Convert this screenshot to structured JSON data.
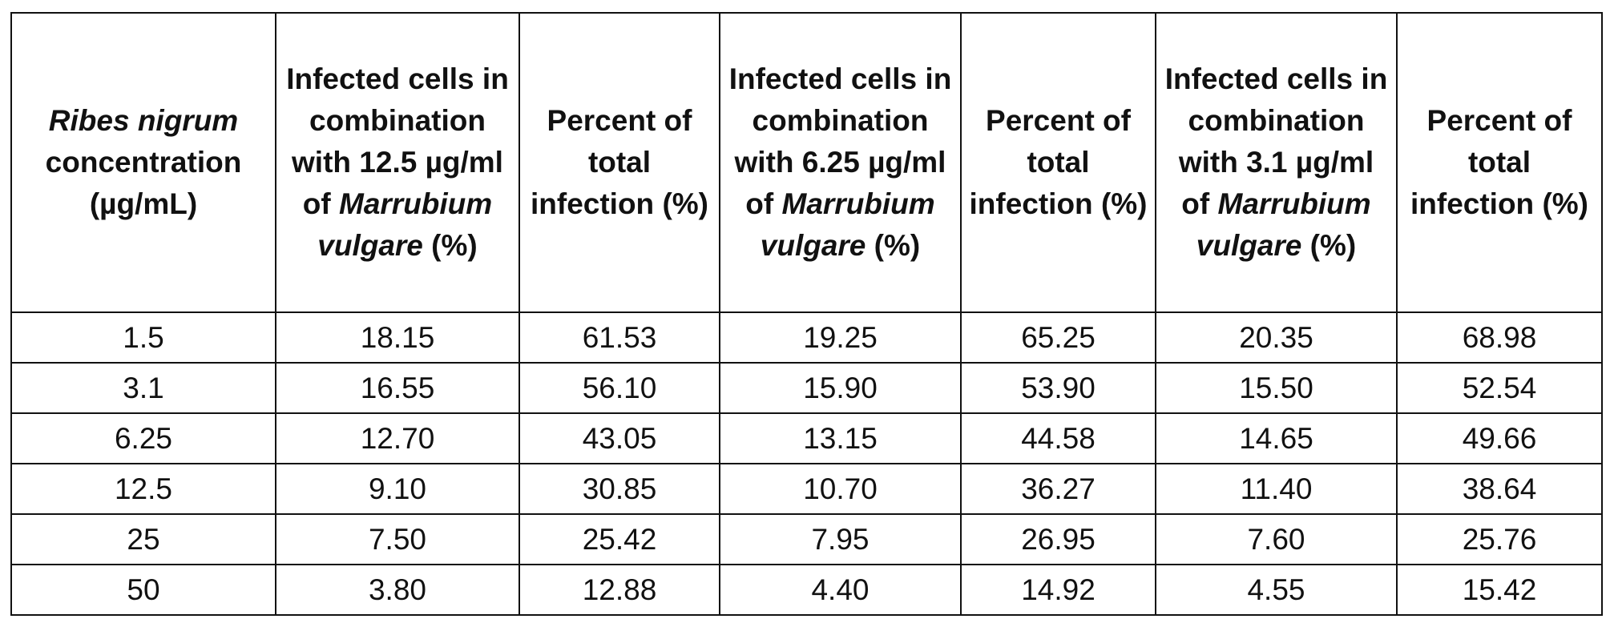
{
  "table": {
    "headers": [
      [
        {
          "text": "Ribes nigrum",
          "italic": true
        },
        {
          "text": " concentration (µg/mL)"
        }
      ],
      [
        {
          "text": "Infected cells in combination with 12.5 µg/ml of "
        },
        {
          "text": "Marrubium vulgare",
          "italic": true
        },
        {
          "text": " (%)"
        }
      ],
      [
        {
          "text": "Percent of total infection (%)"
        }
      ],
      [
        {
          "text": "Infected cells in combination with 6.25 µg/ml of "
        },
        {
          "text": "Marrubium vulgare",
          "italic": true
        },
        {
          "text": " (%)"
        }
      ],
      [
        {
          "text": "Percent of total infection (%)"
        }
      ],
      [
        {
          "text": "Infected cells in combination with 3.1 µg/ml of "
        },
        {
          "text": "Marrubium vulgare",
          "italic": true
        },
        {
          "text": " (%)"
        }
      ],
      [
        {
          "text": "Percent of total infection (%)"
        }
      ]
    ],
    "rows": [
      [
        "1.5",
        "18.15",
        "61.53",
        "19.25",
        "65.25",
        "20.35",
        "68.98"
      ],
      [
        "3.1",
        "16.55",
        "56.10",
        "15.90",
        "53.90",
        "15.50",
        "52.54"
      ],
      [
        "6.25",
        "12.70",
        "43.05",
        "13.15",
        "44.58",
        "14.65",
        "49.66"
      ],
      [
        "12.5",
        "9.10",
        "30.85",
        "10.70",
        "36.27",
        "11.40",
        "38.64"
      ],
      [
        "25",
        "7.50",
        "25.42",
        "7.95",
        "26.95",
        "7.60",
        "25.76"
      ],
      [
        "50",
        "3.80",
        "12.88",
        "4.40",
        "14.92",
        "4.55",
        "15.42"
      ]
    ]
  }
}
